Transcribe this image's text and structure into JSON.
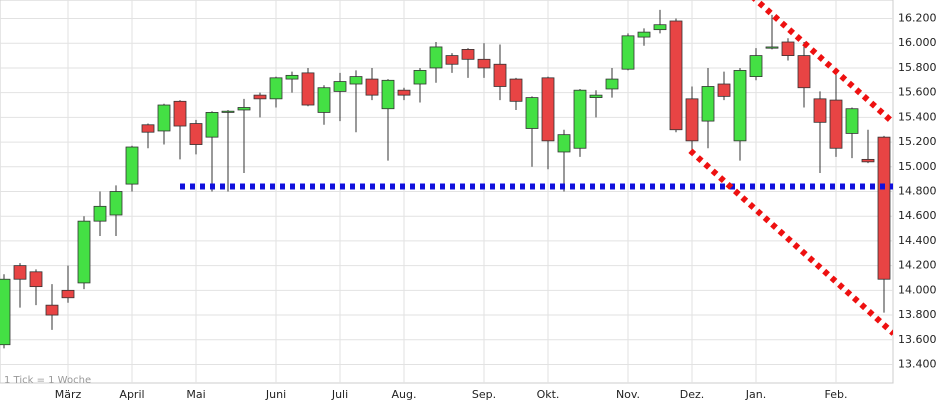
{
  "chart_data": {
    "type": "candlestick",
    "annotation": "1 Tick = 1 Woche",
    "categories": [
      null,
      null,
      null,
      null,
      "März",
      null,
      null,
      null,
      "April",
      null,
      null,
      null,
      "Mai",
      null,
      null,
      null,
      null,
      "Juni",
      null,
      null,
      null,
      "Juli",
      null,
      null,
      null,
      "Aug.",
      null,
      null,
      null,
      null,
      "Sep.",
      null,
      null,
      null,
      "Okt.",
      null,
      null,
      null,
      null,
      "Nov.",
      null,
      null,
      null,
      "Dez.",
      null,
      null,
      null,
      "Jan.",
      null,
      null,
      null,
      null,
      "Feb.",
      null,
      null,
      null
    ],
    "open": [
      13560,
      14200,
      14150,
      13880,
      14000,
      14060,
      14560,
      14610,
      14860,
      15340,
      15290,
      15530,
      15350,
      15240,
      15440,
      15460,
      15580,
      15550,
      15710,
      15760,
      15440,
      15610,
      15670,
      15710,
      15470,
      15620,
      15670,
      15800,
      15900,
      15950,
      15870,
      15830,
      15710,
      15310,
      15720,
      15120,
      15150,
      15560,
      15630,
      15790,
      16050,
      16110,
      16180,
      15550,
      15370,
      15670,
      15210,
      15730,
      15960,
      16010,
      15900,
      15550,
      15540,
      15270,
      15060,
      15240
    ],
    "high": [
      14130,
      14220,
      14170,
      14050,
      14200,
      14600,
      14800,
      14850,
      15170,
      15350,
      15510,
      15540,
      15380,
      15450,
      15460,
      15550,
      15600,
      15730,
      15770,
      15800,
      15660,
      15760,
      15780,
      15800,
      15710,
      15640,
      15800,
      16010,
      15920,
      15960,
      16000,
      15990,
      15720,
      15570,
      15730,
      15300,
      15630,
      15620,
      15800,
      16080,
      16120,
      16270,
      16200,
      15650,
      15800,
      15770,
      15800,
      15960,
      16230,
      16040,
      16010,
      15610,
      15760,
      15480,
      15300,
      15250
    ],
    "low": [
      13530,
      13860,
      13880,
      13680,
      13900,
      14010,
      14440,
      14440,
      14800,
      15150,
      15180,
      15060,
      15100,
      14800,
      14800,
      14950,
      15400,
      15480,
      15600,
      15490,
      15340,
      15370,
      15280,
      15540,
      15050,
      15540,
      15520,
      15680,
      15760,
      15720,
      15720,
      15540,
      15460,
      15000,
      14980,
      14800,
      15080,
      15400,
      15560,
      15780,
      15980,
      16080,
      15280,
      15110,
      15150,
      15540,
      15050,
      15700,
      15950,
      15860,
      15480,
      14950,
      15080,
      15070,
      15030,
      13820
    ],
    "close": [
      14090,
      14090,
      14030,
      13800,
      13940,
      14560,
      14680,
      14800,
      15160,
      15280,
      15500,
      15330,
      15180,
      15440,
      15450,
      15480,
      15550,
      15720,
      15740,
      15500,
      15640,
      15690,
      15730,
      15580,
      15700,
      15580,
      15780,
      15970,
      15830,
      15870,
      15800,
      15650,
      15530,
      15560,
      15210,
      15260,
      15620,
      15580,
      15710,
      16060,
      16090,
      16150,
      15300,
      15210,
      15650,
      15570,
      15780,
      15900,
      15970,
      15900,
      15640,
      15360,
      15150,
      15470,
      15040,
      14090
    ],
    "up_color": "#44e044",
    "down_color": "#e84444",
    "ylim": [
      13250,
      16350
    ],
    "yticks": [
      {
        "value": 13400,
        "label": "13.400"
      },
      {
        "value": 13600,
        "label": "13.600"
      },
      {
        "value": 13800,
        "label": "13.800"
      },
      {
        "value": 14000,
        "label": "14.000"
      },
      {
        "value": 14200,
        "label": "14.200"
      },
      {
        "value": 14400,
        "label": "14.400"
      },
      {
        "value": 14600,
        "label": "14.600"
      },
      {
        "value": 14800,
        "label": "14.800"
      },
      {
        "value": 15000,
        "label": "15.000"
      },
      {
        "value": 15200,
        "label": "15.200"
      },
      {
        "value": 15400,
        "label": "15.400"
      },
      {
        "value": 15600,
        "label": "15.600"
      },
      {
        "value": 15800,
        "label": "15.800"
      },
      {
        "value": 16000,
        "label": "16.000"
      },
      {
        "value": 16200,
        "label": "16.200"
      }
    ],
    "grid": true,
    "lines": [
      {
        "color": "#1010dd",
        "x": [
          11,
          55.6
        ],
        "values": [
          14840,
          14840
        ]
      },
      {
        "color": "#ee1010",
        "x": [
          46.75,
          55.6
        ],
        "values": [
          16380,
          15355
        ]
      },
      {
        "color": "#ee1010",
        "x": [
          42.9,
          55.6
        ],
        "values": [
          15130,
          13650
        ]
      }
    ]
  }
}
